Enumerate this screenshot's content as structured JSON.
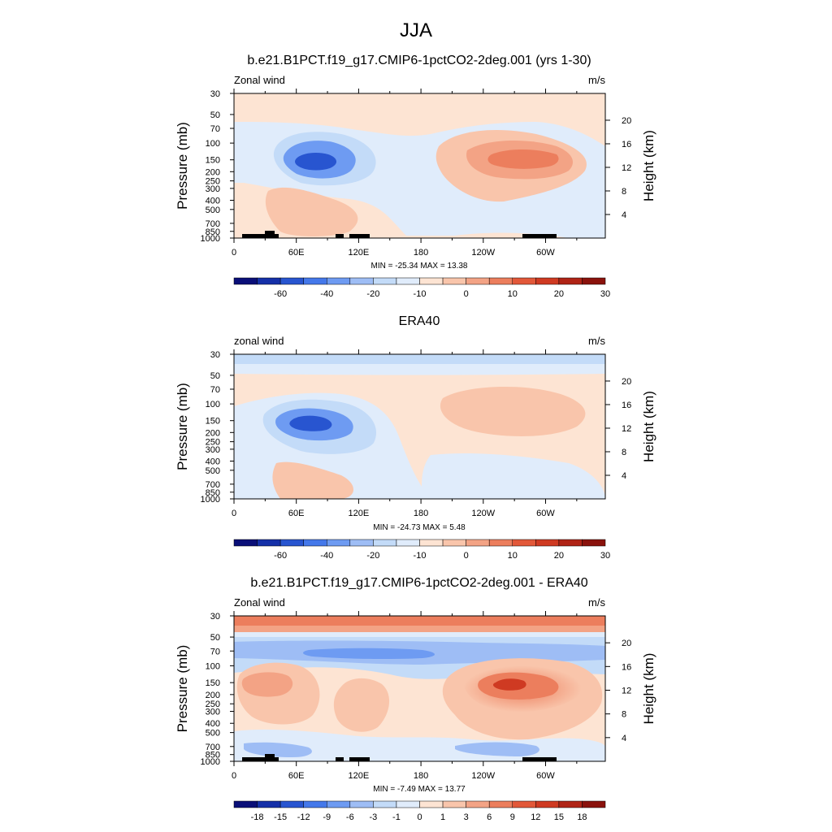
{
  "title": "JJA",
  "panels": [
    {
      "title": "b.e21.B1PCT.f19_g17.CMIP6-1pctCO2-2deg.001 (yrs 1-30)",
      "left_label": "Zonal wind",
      "right_label": "m/s",
      "stats": "MIN = -25.34  MAX =  13.38"
    },
    {
      "title": "ERA40",
      "left_label": "zonal wind",
      "right_label": "m/s",
      "stats": "MIN = -24.73  MAX =   5.48"
    },
    {
      "title": "b.e21.B1PCT.f19_g17.CMIP6-1pctCO2-2deg.001 - ERA40",
      "left_label": "Zonal wind",
      "right_label": "m/s",
      "stats": "MIN = -7.49  MAX = 13.77"
    }
  ],
  "chart_data": [
    {
      "type": "heatmap",
      "xlabel": "",
      "ylabel": "Pressure (mb)",
      "y2label": "Height (km)",
      "xticks": [
        "0",
        "60E",
        "120E",
        "180",
        "120W",
        "60W"
      ],
      "x_tick_values": [
        0,
        60,
        120,
        180,
        240,
        300
      ],
      "xlim": [
        0,
        357.5
      ],
      "yticks": [
        "30",
        "50",
        "70",
        "100",
        "150",
        "200",
        "250",
        "300",
        "400",
        "500",
        "700",
        "850",
        "1000"
      ],
      "y_tick_values": [
        30,
        50,
        70,
        100,
        150,
        200,
        250,
        300,
        400,
        500,
        700,
        850,
        1000
      ],
      "ylim": [
        1000,
        30
      ],
      "y_scale": "log",
      "y2ticks": [
        "20",
        "16",
        "12",
        "8",
        "4"
      ],
      "y2_tick_values": [
        20,
        16,
        12,
        8,
        4
      ],
      "colorbar_labels": [
        "-60",
        "-40",
        "-20",
        "-10",
        "0",
        "10",
        "20",
        "30"
      ],
      "colorbar_colors": [
        "#0a0f78",
        "#1530a8",
        "#2855d0",
        "#4478ea",
        "#6e9bf2",
        "#9ebdf5",
        "#c3dbf8",
        "#e0ecfb",
        "#fde4d3",
        "#f9c5ab",
        "#f3a385",
        "#ec7e5d",
        "#e25839",
        "#cf3a22",
        "#b02416",
        "#8a120c"
      ],
      "min": -25.34,
      "max": 13.38,
      "features": [
        {
          "lon": 80,
          "p": 150,
          "value": -20
        },
        {
          "lon": 270,
          "p": 150,
          "value": 13
        }
      ]
    },
    {
      "type": "heatmap",
      "xlabel": "",
      "ylabel": "Pressure (mb)",
      "y2label": "Height (km)",
      "xticks": [
        "0",
        "60E",
        "120E",
        "180",
        "120W",
        "60W"
      ],
      "x_tick_values": [
        0,
        60,
        120,
        180,
        240,
        300
      ],
      "xlim": [
        0,
        357.5
      ],
      "yticks": [
        "30",
        "50",
        "70",
        "100",
        "150",
        "200",
        "250",
        "300",
        "400",
        "500",
        "700",
        "850",
        "1000"
      ],
      "y_tick_values": [
        30,
        50,
        70,
        100,
        150,
        200,
        250,
        300,
        400,
        500,
        700,
        850,
        1000
      ],
      "ylim": [
        1000,
        30
      ],
      "y_scale": "log",
      "y2ticks": [
        "20",
        "16",
        "12",
        "8",
        "4"
      ],
      "y2_tick_values": [
        20,
        16,
        12,
        8,
        4
      ],
      "colorbar_labels": [
        "-60",
        "-40",
        "-20",
        "-10",
        "0",
        "10",
        "20",
        "30"
      ],
      "colorbar_colors": [
        "#0a0f78",
        "#1530a8",
        "#2855d0",
        "#4478ea",
        "#6e9bf2",
        "#9ebdf5",
        "#c3dbf8",
        "#e0ecfb",
        "#fde4d3",
        "#f9c5ab",
        "#f3a385",
        "#ec7e5d",
        "#e25839",
        "#cf3a22",
        "#b02416",
        "#8a120c"
      ],
      "min": -24.73,
      "max": 5.48,
      "features": [
        {
          "lon": 80,
          "p": 150,
          "value": -20
        },
        {
          "lon": 250,
          "p": 120,
          "value": 3
        }
      ]
    },
    {
      "type": "heatmap",
      "xlabel": "",
      "ylabel": "Pressure (mb)",
      "y2label": "Height (km)",
      "xticks": [
        "0",
        "60E",
        "120E",
        "180",
        "120W",
        "60W"
      ],
      "x_tick_values": [
        0,
        60,
        120,
        180,
        240,
        300
      ],
      "xlim": [
        0,
        357.5
      ],
      "yticks": [
        "30",
        "50",
        "70",
        "100",
        "150",
        "200",
        "250",
        "300",
        "400",
        "500",
        "700",
        "850",
        "1000"
      ],
      "y_tick_values": [
        30,
        50,
        70,
        100,
        150,
        200,
        250,
        300,
        400,
        500,
        700,
        850,
        1000
      ],
      "ylim": [
        1000,
        30
      ],
      "y_scale": "log",
      "y2ticks": [
        "20",
        "16",
        "12",
        "8",
        "4"
      ],
      "y2_tick_values": [
        20,
        16,
        12,
        8,
        4
      ],
      "colorbar_labels": [
        "-18",
        "-15",
        "-12",
        "-9",
        "-6",
        "-3",
        "-1",
        "0",
        "1",
        "3",
        "6",
        "9",
        "12",
        "15",
        "18"
      ],
      "colorbar_colors": [
        "#0a0f78",
        "#1530a8",
        "#2855d0",
        "#4478ea",
        "#6e9bf2",
        "#9ebdf5",
        "#c3dbf8",
        "#e0ecfb",
        "#fde4d3",
        "#f9c5ab",
        "#f3a385",
        "#ec7e5d",
        "#e25839",
        "#cf3a22",
        "#b02416",
        "#8a120c"
      ],
      "min": -7.49,
      "max": 13.77,
      "features": [
        {
          "lon": 265,
          "p": 150,
          "value": 12
        },
        {
          "lon": 30,
          "p": 150,
          "value": 4
        },
        {
          "lon": 130,
          "p": 170,
          "value": 3
        },
        {
          "lon": 180,
          "p": 70,
          "value": -5
        }
      ]
    }
  ]
}
